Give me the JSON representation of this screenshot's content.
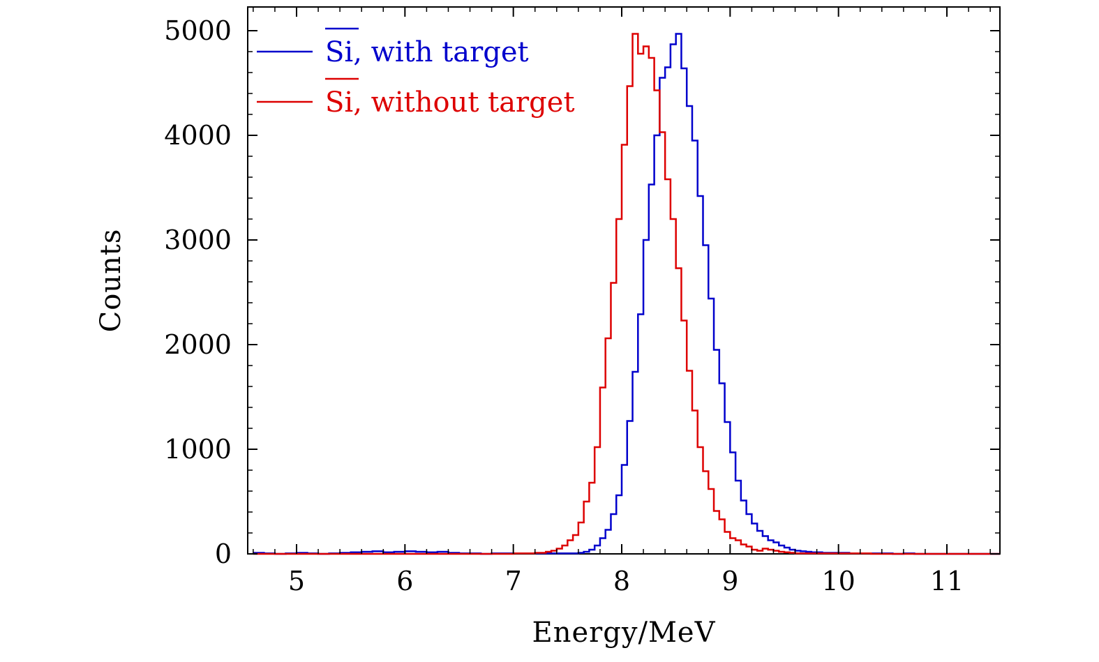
{
  "chart_data": {
    "type": "line",
    "step": true,
    "title": "",
    "xlabel": "Energy/MeV",
    "ylabel": "Counts",
    "xlim": [
      4.6,
      11.5
    ],
    "ylim": [
      0,
      5000
    ],
    "xticks": [
      5,
      6,
      7,
      8,
      9,
      10,
      11
    ],
    "yticks": [
      0,
      1000,
      2000,
      3000,
      4000,
      5000
    ],
    "grid": false,
    "legend_position": "top-left",
    "series": [
      {
        "name": "Si, with target",
        "color": "#0000cc",
        "x": [
          4.6,
          4.7,
          4.8,
          4.9,
          5.0,
          5.1,
          5.2,
          5.3,
          5.4,
          5.5,
          5.6,
          5.7,
          5.8,
          5.9,
          6.0,
          6.1,
          6.2,
          6.3,
          6.4,
          6.5,
          6.6,
          6.7,
          6.8,
          6.9,
          7.0,
          7.1,
          7.2,
          7.3,
          7.4,
          7.5,
          7.6,
          7.65,
          7.7,
          7.75,
          7.8,
          7.85,
          7.9,
          7.95,
          8.0,
          8.05,
          8.1,
          8.15,
          8.2,
          8.25,
          8.3,
          8.35,
          8.4,
          8.45,
          8.5,
          8.55,
          8.6,
          8.65,
          8.7,
          8.75,
          8.8,
          8.85,
          8.9,
          8.95,
          9.0,
          9.05,
          9.1,
          9.15,
          9.2,
          9.25,
          9.3,
          9.35,
          9.4,
          9.45,
          9.5,
          9.55,
          9.6,
          9.65,
          9.7,
          9.75,
          9.8,
          9.85,
          9.9,
          10.0,
          10.1,
          10.2,
          10.3,
          10.4,
          10.5,
          10.6,
          10.7,
          10.8,
          10.9,
          11.0,
          11.1,
          11.2,
          11.3,
          11.4
        ],
        "values": [
          10,
          5,
          0,
          5,
          10,
          5,
          0,
          5,
          10,
          15,
          20,
          25,
          15,
          20,
          25,
          20,
          15,
          20,
          10,
          5,
          5,
          0,
          5,
          5,
          5,
          5,
          5,
          5,
          5,
          5,
          10,
          20,
          40,
          80,
          150,
          230,
          380,
          560,
          850,
          1270,
          1740,
          2290,
          3000,
          3530,
          4000,
          4550,
          4650,
          4870,
          4970,
          4640,
          4280,
          3950,
          3420,
          2950,
          2440,
          1950,
          1630,
          1260,
          970,
          700,
          510,
          380,
          290,
          220,
          170,
          130,
          110,
          80,
          60,
          40,
          30,
          25,
          20,
          15,
          15,
          10,
          10,
          10,
          5,
          5,
          5,
          5,
          0,
          5,
          0,
          0,
          0,
          0,
          0,
          0,
          0,
          0
        ]
      },
      {
        "name": "Si, without target",
        "color": "#dd0000",
        "x": [
          4.6,
          4.7,
          4.8,
          4.9,
          5.0,
          5.1,
          5.2,
          5.3,
          5.4,
          5.5,
          5.6,
          5.7,
          5.8,
          5.9,
          6.0,
          6.1,
          6.2,
          6.3,
          6.4,
          6.5,
          6.6,
          6.7,
          6.8,
          6.9,
          7.0,
          7.1,
          7.2,
          7.3,
          7.35,
          7.4,
          7.45,
          7.5,
          7.55,
          7.6,
          7.65,
          7.7,
          7.75,
          7.8,
          7.85,
          7.9,
          7.95,
          8.0,
          8.05,
          8.1,
          8.15,
          8.2,
          8.25,
          8.3,
          8.35,
          8.4,
          8.45,
          8.5,
          8.55,
          8.6,
          8.65,
          8.7,
          8.75,
          8.8,
          8.85,
          8.9,
          8.95,
          9.0,
          9.05,
          9.1,
          9.15,
          9.2,
          9.25,
          9.3,
          9.35,
          9.4,
          9.45,
          9.5,
          9.55,
          9.6,
          9.65,
          9.7,
          9.8,
          9.9,
          10.0,
          10.1,
          10.2,
          10.3,
          10.4,
          10.5,
          10.6,
          10.7,
          10.8,
          10.9,
          11.0,
          11.1,
          11.2,
          11.3,
          11.4
        ],
        "values": [
          0,
          0,
          0,
          0,
          0,
          0,
          0,
          0,
          0,
          0,
          0,
          0,
          0,
          0,
          0,
          0,
          0,
          0,
          0,
          0,
          0,
          0,
          0,
          0,
          5,
          5,
          10,
          20,
          30,
          50,
          80,
          130,
          180,
          300,
          500,
          680,
          1020,
          1590,
          2060,
          2590,
          3200,
          3910,
          4470,
          4970,
          4780,
          4850,
          4740,
          4430,
          4030,
          3580,
          3200,
          2730,
          2230,
          1750,
          1370,
          1020,
          790,
          620,
          410,
          330,
          210,
          150,
          130,
          90,
          70,
          40,
          30,
          50,
          40,
          30,
          20,
          15,
          10,
          5,
          5,
          5,
          5,
          5,
          5,
          5,
          5,
          0,
          0,
          0,
          0,
          0,
          0,
          0,
          0,
          0,
          0,
          0,
          0
        ]
      }
    ]
  }
}
